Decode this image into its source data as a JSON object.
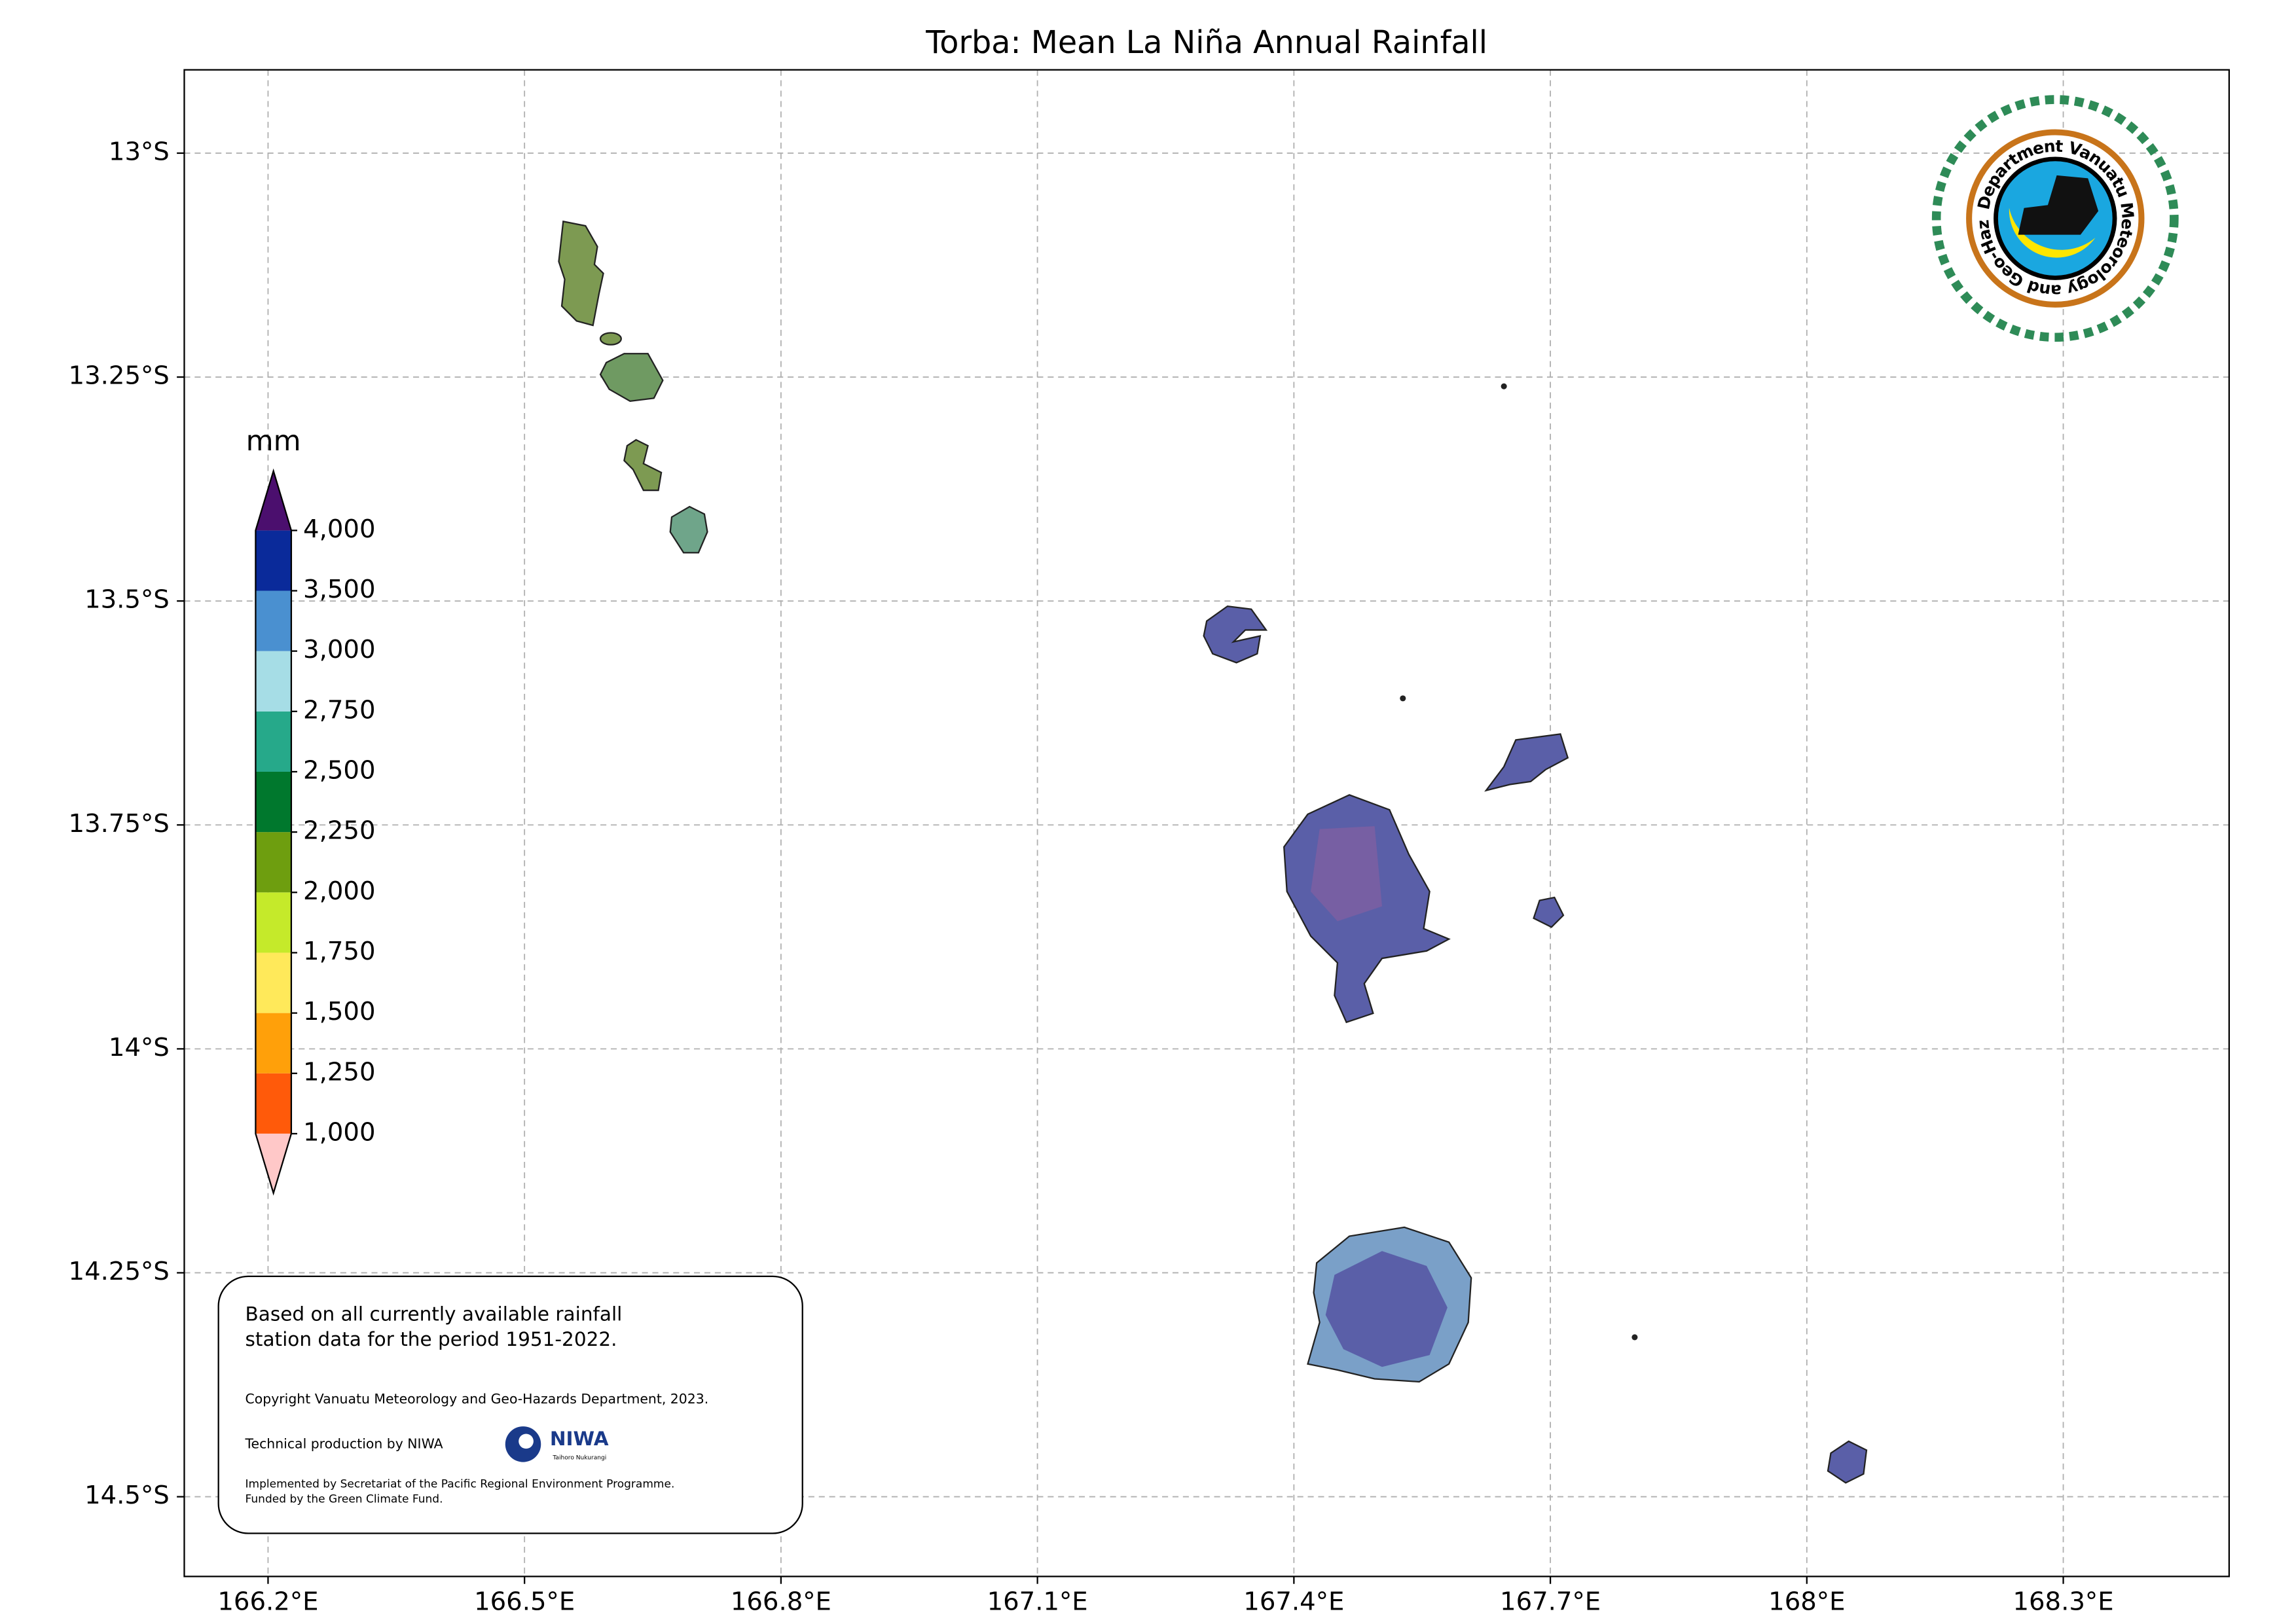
{
  "title": "Torba: Mean La Niña Annual Rainfall",
  "map": {
    "xlim": [
      166.102,
      168.494
    ],
    "ylim": [
      -14.589,
      -12.907
    ],
    "grid": true,
    "xticks": [
      {
        "value": 166.2,
        "label": "166.2°E"
      },
      {
        "value": 166.5,
        "label": "166.5°E"
      },
      {
        "value": 166.8,
        "label": "166.8°E"
      },
      {
        "value": 167.1,
        "label": "167.1°E"
      },
      {
        "value": 167.4,
        "label": "167.4°E"
      },
      {
        "value": 167.7,
        "label": "167.7°E"
      },
      {
        "value": 168.0,
        "label": "168°E"
      },
      {
        "value": 168.3,
        "label": "168.3°E"
      }
    ],
    "yticks": [
      {
        "value": -13,
        "label": "13°S"
      },
      {
        "value": -13.25,
        "label": "13.25°S"
      },
      {
        "value": -13.5,
        "label": "13.5°S"
      },
      {
        "value": -13.75,
        "label": "13.75°S"
      },
      {
        "value": -14,
        "label": "14°S"
      },
      {
        "value": -14.25,
        "label": "14.25°S"
      },
      {
        "value": -14.5,
        "label": "14.5°S"
      }
    ]
  },
  "colorbar": {
    "label": "mm",
    "ticks": [
      {
        "value": 1000,
        "label": "1,000"
      },
      {
        "value": 1250,
        "label": "1,250"
      },
      {
        "value": 1500,
        "label": "1,500"
      },
      {
        "value": 1750,
        "label": "1,750"
      },
      {
        "value": 2000,
        "label": "2,000"
      },
      {
        "value": 2250,
        "label": "2,250"
      },
      {
        "value": 2500,
        "label": "2,500"
      },
      {
        "value": 2750,
        "label": "2,750"
      },
      {
        "value": 3000,
        "label": "3,000"
      },
      {
        "value": 3500,
        "label": "3,500"
      },
      {
        "value": 4000,
        "label": "4,000"
      }
    ],
    "colors": [
      "#ff5a0a",
      "#ffa00a",
      "#ffe95a",
      "#c5ea2a",
      "#6e9e0f",
      "#00782d",
      "#26a98a",
      "#a6dde6",
      "#4a90d0",
      "#0a2a9a"
    ],
    "under_color": "#ffc8c8",
    "over_color": "#4b0f6e"
  },
  "note": {
    "lines": [
      "Based on all currently available rainfall",
      "station data for the period 1951-2022."
    ],
    "copyright": "Copyright Vanuatu Meteorology and Geo-Hazards Department, 2023.",
    "production": "Technical production by NIWA",
    "niwa": "NIWA",
    "niwa_sub": "Taihoro Nukurangi",
    "funding": [
      "Implemented by Secretariat of the Pacific Regional Environment Programme.",
      "Funded by the Green Climate Fund."
    ]
  },
  "logo": {
    "text": "Department Vanuatu Meteorology and Geo-Hazards"
  }
}
